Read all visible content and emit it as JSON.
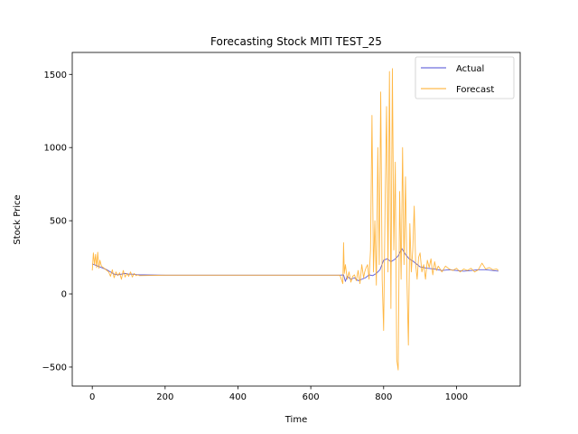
{
  "chart_data": {
    "type": "line",
    "title": "Forecasting Stock MITI TEST_25",
    "xlabel": "Time",
    "ylabel": "Stock Price",
    "xlim": [
      -55,
      1175
    ],
    "ylim": [
      -630,
      1650
    ],
    "xticks": [
      0,
      200,
      400,
      600,
      800,
      1000
    ],
    "yticks": [
      -500,
      0,
      500,
      1000,
      1500
    ],
    "grid": false,
    "legend_position": "top-right",
    "colors": {
      "actual": "#4b4bd6",
      "forecast": "#ffaa22"
    },
    "series": [
      {
        "name": "Actual",
        "x": [
          0,
          10,
          20,
          30,
          40,
          50,
          60,
          70,
          80,
          90,
          100,
          110,
          120,
          130,
          140,
          200,
          300,
          400,
          500,
          600,
          680,
          690,
          695,
          700,
          710,
          720,
          730,
          740,
          750,
          760,
          770,
          780,
          790,
          800,
          810,
          820,
          830,
          840,
          850,
          860,
          870,
          880,
          890,
          900,
          920,
          940,
          960,
          980,
          1000,
          1020,
          1040,
          1060,
          1080,
          1100,
          1115
        ],
        "y": [
          205,
          195,
          185,
          175,
          165,
          150,
          135,
          130,
          135,
          140,
          135,
          135,
          132,
          130,
          130,
          128,
          128,
          128,
          128,
          128,
          128,
          130,
          85,
          120,
          100,
          110,
          90,
          100,
          110,
          130,
          125,
          140,
          165,
          230,
          240,
          220,
          235,
          260,
          310,
          270,
          240,
          225,
          205,
          185,
          175,
          170,
          160,
          165,
          160,
          155,
          160,
          165,
          165,
          160,
          155
        ]
      },
      {
        "name": "Forecast",
        "x": [
          0,
          3,
          6,
          9,
          12,
          15,
          18,
          21,
          25,
          30,
          35,
          40,
          45,
          50,
          55,
          60,
          65,
          70,
          75,
          80,
          85,
          90,
          95,
          100,
          105,
          110,
          115,
          120,
          125,
          130,
          200,
          300,
          400,
          500,
          600,
          680,
          688,
          690,
          692,
          695,
          700,
          705,
          710,
          715,
          720,
          725,
          730,
          735,
          740,
          745,
          748,
          752,
          756,
          760,
          764,
          768,
          772,
          776,
          780,
          784,
          788,
          792,
          796,
          800,
          804,
          808,
          812,
          816,
          820,
          824,
          828,
          832,
          836,
          840,
          844,
          848,
          852,
          856,
          860,
          864,
          868,
          872,
          876,
          880,
          884,
          888,
          892,
          896,
          900,
          905,
          910,
          915,
          920,
          925,
          930,
          935,
          940,
          945,
          950,
          960,
          970,
          980,
          990,
          1000,
          1010,
          1020,
          1030,
          1040,
          1050,
          1060,
          1070,
          1080,
          1090,
          1100,
          1110,
          1115
        ],
        "y": [
          160,
          280,
          200,
          270,
          180,
          285,
          175,
          230,
          190,
          180,
          170,
          160,
          150,
          120,
          165,
          110,
          150,
          125,
          145,
          100,
          160,
          115,
          140,
          120,
          150,
          115,
          140,
          125,
          130,
          125,
          128,
          128,
          128,
          128,
          128,
          128,
          70,
          350,
          140,
          200,
          100,
          150,
          80,
          120,
          130,
          90,
          160,
          70,
          200,
          110,
          150,
          180,
          200,
          100,
          300,
          1220,
          150,
          500,
          60,
          1000,
          200,
          1380,
          100,
          -250,
          600,
          1280,
          150,
          1520,
          -100,
          1540,
          300,
          900,
          -450,
          -520,
          700,
          100,
          1000,
          200,
          800,
          100,
          -350,
          480,
          150,
          300,
          600,
          200,
          100,
          250,
          280,
          150,
          200,
          100,
          230,
          180,
          240,
          130,
          220,
          160,
          190,
          150,
          190,
          170,
          160,
          175,
          150,
          170,
          160,
          175,
          150,
          165,
          210,
          170,
          180,
          165,
          170,
          160
        ]
      }
    ]
  }
}
